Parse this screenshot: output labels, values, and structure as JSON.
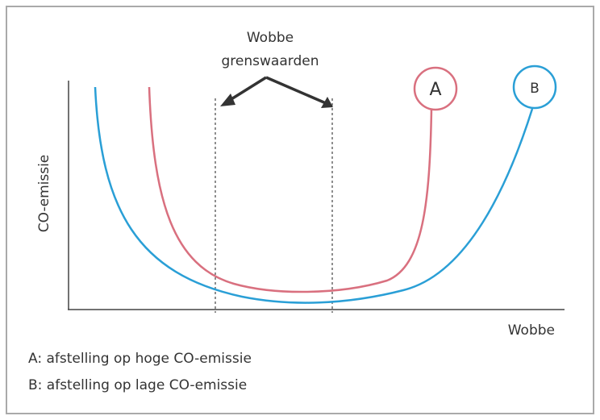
{
  "annotation": {
    "lines": [
      "Wobbe",
      "grenswaarden"
    ]
  },
  "curves": [
    {
      "label": "A"
    },
    {
      "label": "B"
    }
  ],
  "axes": {
    "y_label": "CO-emissie",
    "x_label": "Wobbe"
  },
  "legend": [
    "A: afstelling op hoge CO-emissie",
    "B: afstelling op lage CO-emissie"
  ]
}
